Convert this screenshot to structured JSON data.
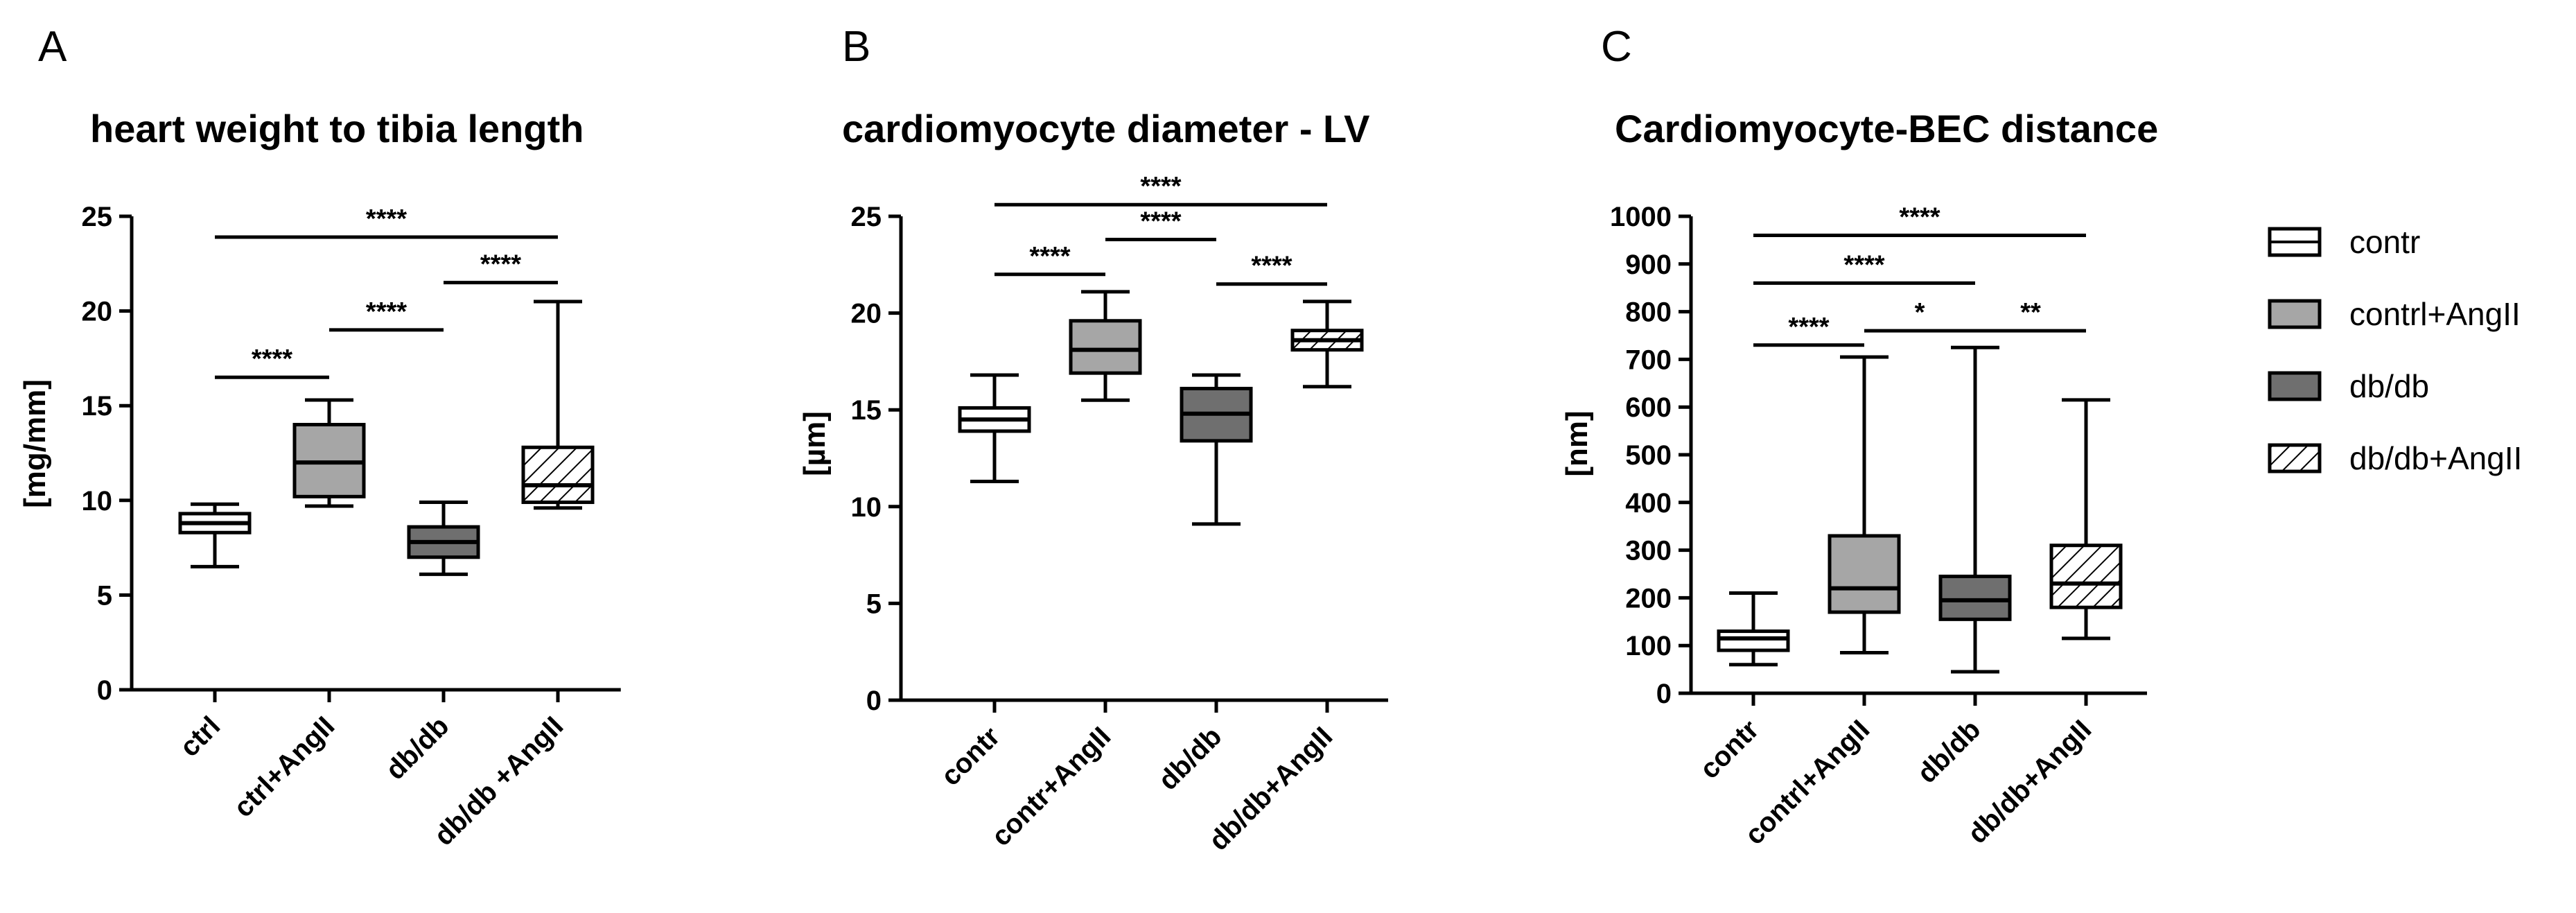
{
  "chart_data": [
    {
      "type": "box",
      "panel_label": "A",
      "title": "heart weight to tibia length",
      "ylabel": "[mg/mm]",
      "ylim": [
        0,
        25
      ],
      "yticks": [
        0,
        5,
        10,
        15,
        20,
        25
      ],
      "categories": [
        "ctrl",
        "ctrl+AngII",
        "db/db",
        "db/db +AngII"
      ],
      "boxes": [
        {
          "group": "contr",
          "min": 6.5,
          "q1": 8.3,
          "median": 8.8,
          "q3": 9.3,
          "max": 9.8
        },
        {
          "group": "contrl+AngII",
          "min": 9.7,
          "q1": 10.2,
          "median": 12.0,
          "q3": 14.0,
          "max": 15.3
        },
        {
          "group": "db/db",
          "min": 6.1,
          "q1": 7.0,
          "median": 7.8,
          "q3": 8.6,
          "max": 9.9
        },
        {
          "group": "db/db+AngII",
          "min": 9.6,
          "q1": 9.9,
          "median": 10.8,
          "q3": 12.8,
          "max": 20.5
        }
      ],
      "significance": [
        {
          "from": 0,
          "to": 1,
          "y": 16.5,
          "label": "****"
        },
        {
          "from": 1,
          "to": 2,
          "y": 19.0,
          "label": "****"
        },
        {
          "from": 2,
          "to": 3,
          "y": 21.5,
          "label": "****"
        },
        {
          "from": 0,
          "to": 3,
          "y": 23.9,
          "label": "****"
        }
      ]
    },
    {
      "type": "box",
      "panel_label": "B",
      "title": "cardiomyocyte diameter - LV",
      "ylabel": "[µm]",
      "ylim": [
        0,
        25
      ],
      "yticks": [
        0,
        5,
        10,
        15,
        20,
        25
      ],
      "categories": [
        "contr",
        "contr+AngII",
        "db/db",
        "db/db+AngII"
      ],
      "boxes": [
        {
          "group": "contr",
          "min": 11.3,
          "q1": 13.9,
          "median": 14.5,
          "q3": 15.1,
          "max": 16.8
        },
        {
          "group": "contrl+AngII",
          "min": 15.5,
          "q1": 16.9,
          "median": 18.1,
          "q3": 19.6,
          "max": 21.1
        },
        {
          "group": "db/db",
          "min": 9.1,
          "q1": 13.4,
          "median": 14.8,
          "q3": 16.1,
          "max": 16.8
        },
        {
          "group": "db/db+AngII",
          "min": 16.2,
          "q1": 18.1,
          "median": 18.6,
          "q3": 19.1,
          "max": 20.6
        }
      ],
      "significance": [
        {
          "from": 0,
          "to": 1,
          "y": 22.0,
          "label": "****"
        },
        {
          "from": 1,
          "to": 2,
          "y": 23.8,
          "label": "****"
        },
        {
          "from": 2,
          "to": 3,
          "y": 21.5,
          "label": "****"
        },
        {
          "from": 0,
          "to": 3,
          "y": 25.6,
          "label": "****"
        }
      ]
    },
    {
      "type": "box",
      "panel_label": "C",
      "title": "Cardiomyocyte-BEC distance",
      "ylabel": "[nm]",
      "ylim": [
        0,
        1000
      ],
      "yticks": [
        0,
        100,
        200,
        300,
        400,
        500,
        600,
        700,
        800,
        900,
        1000
      ],
      "categories": [
        "contr",
        "contrl+AngII",
        "db/db",
        "db/db+AngII"
      ],
      "boxes": [
        {
          "group": "contr",
          "min": 60,
          "q1": 90,
          "median": 115,
          "q3": 130,
          "max": 210
        },
        {
          "group": "contrl+AngII",
          "min": 85,
          "q1": 170,
          "median": 220,
          "q3": 330,
          "max": 705
        },
        {
          "group": "db/db",
          "min": 45,
          "q1": 155,
          "median": 195,
          "q3": 245,
          "max": 725
        },
        {
          "group": "db/db+AngII",
          "min": 115,
          "q1": 180,
          "median": 230,
          "q3": 310,
          "max": 615
        }
      ],
      "significance": [
        {
          "from": 0,
          "to": 1,
          "y": 730,
          "label": "****"
        },
        {
          "from": 1,
          "to": 2,
          "y": 760,
          "label": "*"
        },
        {
          "from": 2,
          "to": 3,
          "y": 760,
          "label": "**"
        },
        {
          "from": 0,
          "to": 2,
          "y": 860,
          "label": "****"
        },
        {
          "from": 0,
          "to": 3,
          "y": 960,
          "label": "****"
        }
      ]
    }
  ],
  "legend": {
    "items": [
      {
        "label": "contr",
        "style": "white"
      },
      {
        "label": "contrl+AngII",
        "style": "lightgray"
      },
      {
        "label": "db/db",
        "style": "darkgray"
      },
      {
        "label": "db/db+AngII",
        "style": "hatched"
      }
    ]
  },
  "colors": {
    "white": "#ffffff",
    "lightgray": "#a6a6a6",
    "darkgray": "#6f6f6f",
    "hatch": "#000000",
    "line": "#000000"
  }
}
